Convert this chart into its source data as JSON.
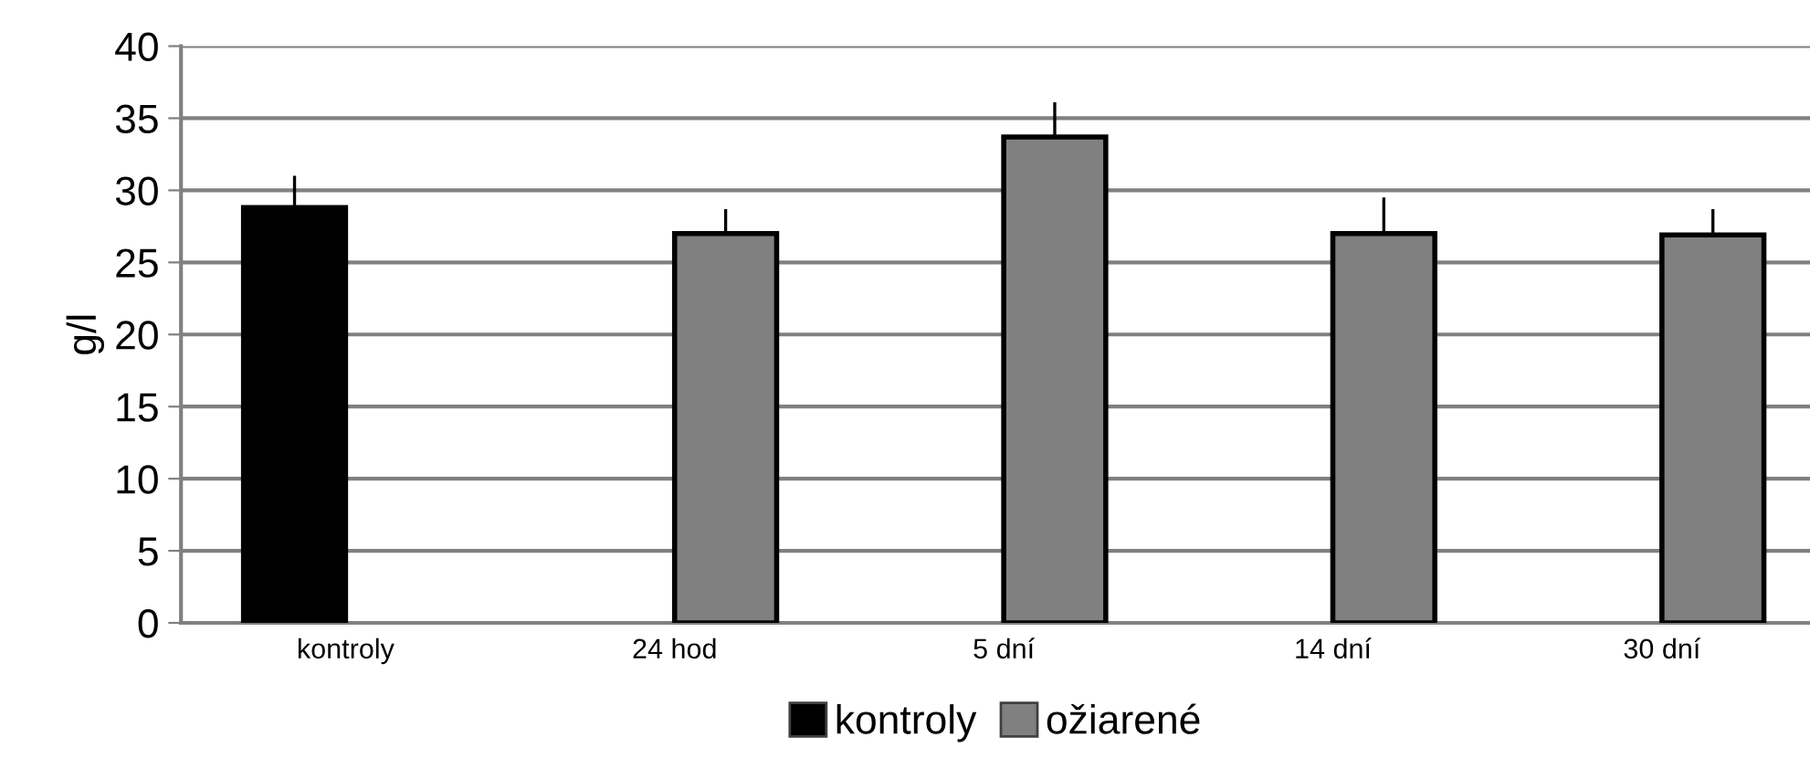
{
  "chart_data": {
    "type": "bar",
    "ylabel": "g/l",
    "categories": [
      "kontroly",
      "24 hod",
      "5 dní",
      "14 dní",
      "30 dní"
    ],
    "series": [
      {
        "name": "kontroly",
        "color": "#000000",
        "values": [
          28.8,
          null,
          null,
          null,
          null
        ],
        "errors": [
          [
            28.8,
            31.0
          ],
          null,
          null,
          null,
          null
        ]
      },
      {
        "name": "ožiarené",
        "color": "#808080",
        "values": [
          null,
          27.0,
          33.7,
          27.0,
          26.9
        ],
        "errors": [
          null,
          [
            27.0,
            28.7
          ],
          [
            33.7,
            36.1
          ],
          [
            27.0,
            29.5
          ],
          [
            26.9,
            28.7
          ]
        ]
      }
    ],
    "ylim": [
      0,
      40
    ],
    "yticks": [
      0,
      5,
      10,
      15,
      20,
      25,
      30,
      35,
      40
    ],
    "grid": "y",
    "legend": "bottom"
  }
}
